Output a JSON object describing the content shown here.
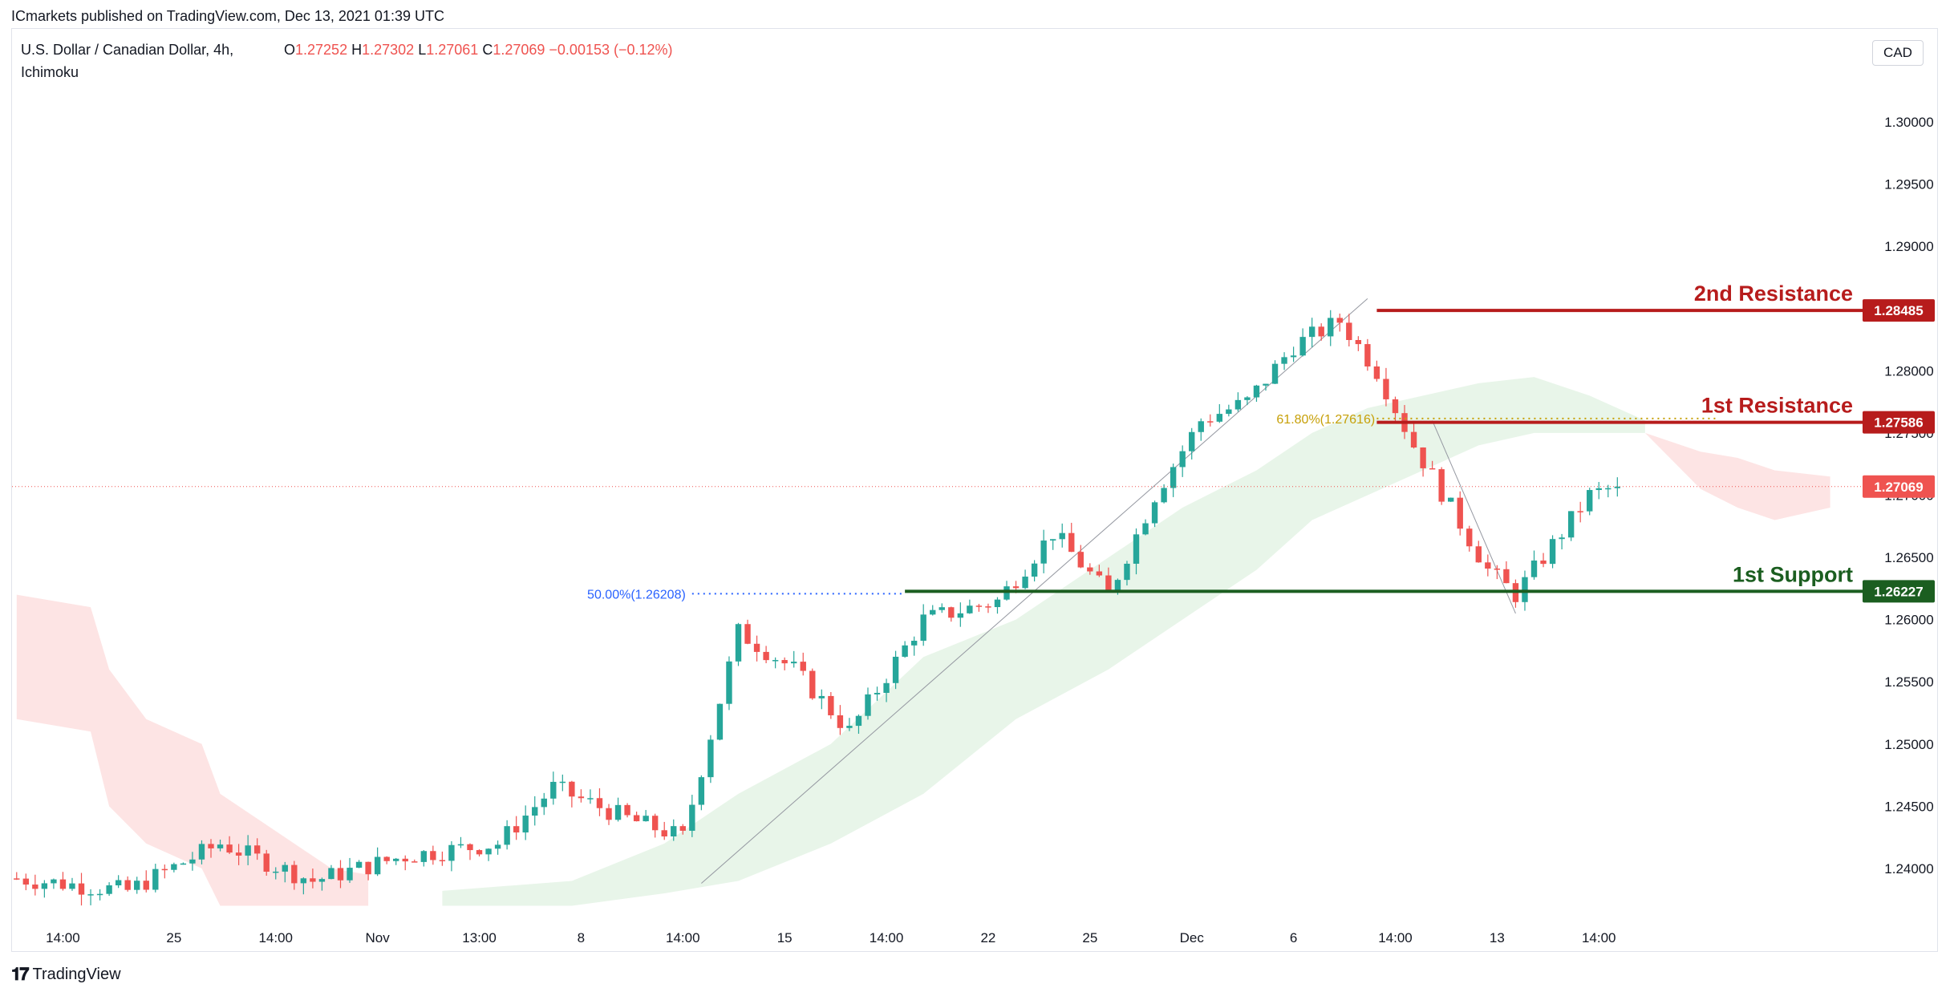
{
  "header": {
    "published": "ICmarkets published on TradingView.com, Dec 13, 2021 01:39 UTC",
    "symbol": "U.S. Dollar / Canadian Dollar, 4h,",
    "indicator": "Ichimoku",
    "ohlc": {
      "o_label": "O",
      "o": "1.27252",
      "h_label": "H",
      "h": "1.27302",
      "l_label": "L",
      "l": "1.27061",
      "c_label": "C",
      "c": "1.27069",
      "change": "−0.00153 (−0.12%)"
    },
    "currency": "CAD"
  },
  "branding": {
    "logo_icon": "tradingview-logo-icon",
    "name": "TradingView"
  },
  "colors": {
    "up": "#26a69a",
    "down": "#ef5350",
    "resistance": "#b71c1c",
    "support": "#1b5e20",
    "kumo_bull": "#e8f5e9",
    "kumo_bear": "#fde4e4",
    "fib50": "#2962ff",
    "fib618": "#c7a008"
  },
  "chart_data": {
    "type": "candlestick",
    "y_axis": {
      "ylim": [
        1.236,
        1.304
      ],
      "ticks": [
        "1.30000",
        "1.29500",
        "1.29000",
        "1.28500",
        "1.28000",
        "1.27500",
        "1.27000",
        "1.26500",
        "1.26000",
        "1.25500",
        "1.25000",
        "1.24500",
        "1.24000"
      ],
      "tick_values": [
        1.3,
        1.295,
        1.29,
        1.285,
        1.28,
        1.275,
        1.27,
        1.265,
        1.26,
        1.255,
        1.25,
        1.245,
        1.24
      ]
    },
    "x_axis": {
      "bar_count": 200,
      "ticks": [
        {
          "label": "14:00",
          "bar": 5
        },
        {
          "label": "25",
          "bar": 17
        },
        {
          "label": "14:00",
          "bar": 28
        },
        {
          "label": "Nov",
          "bar": 39
        },
        {
          "label": "13:00",
          "bar": 50
        },
        {
          "label": "8",
          "bar": 61
        },
        {
          "label": "14:00",
          "bar": 72
        },
        {
          "label": "15",
          "bar": 83
        },
        {
          "label": "14:00",
          "bar": 94
        },
        {
          "label": "22",
          "bar": 105
        },
        {
          "label": "25",
          "bar": 116
        },
        {
          "label": "Dec",
          "bar": 127
        },
        {
          "label": "6",
          "bar": 138
        },
        {
          "label": "14:00",
          "bar": 149
        },
        {
          "label": "13",
          "bar": 160
        },
        {
          "label": "14:00",
          "bar": 171
        }
      ]
    },
    "price_path": [
      [
        0,
        1.2392
      ],
      [
        12,
        1.2382
      ],
      [
        22,
        1.242
      ],
      [
        32,
        1.239
      ],
      [
        42,
        1.241
      ],
      [
        52,
        1.242
      ],
      [
        58,
        1.2465
      ],
      [
        66,
        1.244
      ],
      [
        72,
        1.2425
      ],
      [
        78,
        1.259
      ],
      [
        84,
        1.256
      ],
      [
        90,
        1.251
      ],
      [
        98,
        1.26
      ],
      [
        106,
        1.2615
      ],
      [
        112,
        1.267
      ],
      [
        118,
        1.262
      ],
      [
        123,
        1.27
      ],
      [
        128,
        1.276
      ],
      [
        133,
        1.2775
      ],
      [
        138,
        1.282
      ],
      [
        143,
        1.284
      ],
      [
        147,
        1.28
      ],
      [
        151,
        1.274
      ],
      [
        155,
        1.269
      ],
      [
        159,
        1.264
      ],
      [
        162,
        1.262
      ],
      [
        166,
        1.266
      ],
      [
        170,
        1.27
      ],
      [
        173,
        1.2707
      ]
    ],
    "last_bar": 173,
    "current_price": {
      "value": 1.27069,
      "label": "1.27069"
    },
    "levels": [
      {
        "name": "2nd Resistance",
        "value": 1.28485,
        "label": "1.28485",
        "start_bar": 147,
        "kind": "resistance"
      },
      {
        "name": "1st Resistance",
        "value": 1.27586,
        "label": "1.27586",
        "start_bar": 147,
        "kind": "resistance"
      },
      {
        "name": "1st Support",
        "value": 1.26227,
        "label": "1.26227",
        "start_bar": 96,
        "kind": "support"
      }
    ],
    "fibonacci": [
      {
        "label": "50.00%(1.26208)",
        "value": 1.26208,
        "from_bar": 73,
        "to_bar": 96
      },
      {
        "label": "61.80%(1.27616)",
        "value": 1.27616,
        "from_bar": 147,
        "to_bar": 184
      }
    ],
    "trendlines": [
      {
        "from": [
          74,
          1.2388
        ],
        "to": [
          146,
          1.2858
        ]
      },
      {
        "from": [
          153,
          1.276
        ],
        "to": [
          162,
          1.2605
        ]
      }
    ],
    "ichimoku": {
      "kumo_bear": [
        [
          0,
          1.262,
          1.252
        ],
        [
          8,
          1.261,
          1.251
        ],
        [
          10,
          1.256,
          1.245
        ],
        [
          14,
          1.252,
          1.242
        ],
        [
          20,
          1.25,
          1.24
        ],
        [
          22,
          1.246,
          1.237
        ],
        [
          26,
          1.244,
          1.237
        ],
        [
          30,
          1.242,
          1.237
        ],
        [
          34,
          1.24,
          1.237
        ],
        [
          38,
          1.2395,
          1.237
        ]
      ],
      "kumo_bull": [
        [
          46,
          1.2382,
          1.237
        ],
        [
          60,
          1.239,
          1.237
        ],
        [
          70,
          1.242,
          1.238
        ],
        [
          78,
          1.246,
          1.239
        ],
        [
          88,
          1.25,
          1.242
        ],
        [
          98,
          1.257,
          1.246
        ],
        [
          108,
          1.26,
          1.252
        ],
        [
          118,
          1.265,
          1.256
        ],
        [
          126,
          1.269,
          1.26
        ],
        [
          134,
          1.272,
          1.264
        ],
        [
          140,
          1.275,
          1.268
        ],
        [
          146,
          1.277,
          1.27
        ],
        [
          152,
          1.278,
          1.272
        ],
        [
          158,
          1.279,
          1.274
        ],
        [
          164,
          1.2795,
          1.275
        ],
        [
          170,
          1.278,
          1.275
        ],
        [
          176,
          1.276,
          1.275
        ]
      ],
      "kumo_bear_future": [
        [
          176,
          1.275,
          1.275
        ],
        [
          182,
          1.2735,
          1.2705
        ],
        [
          186,
          1.273,
          1.269
        ],
        [
          190,
          1.272,
          1.268
        ],
        [
          196,
          1.2715,
          1.269
        ]
      ]
    }
  }
}
